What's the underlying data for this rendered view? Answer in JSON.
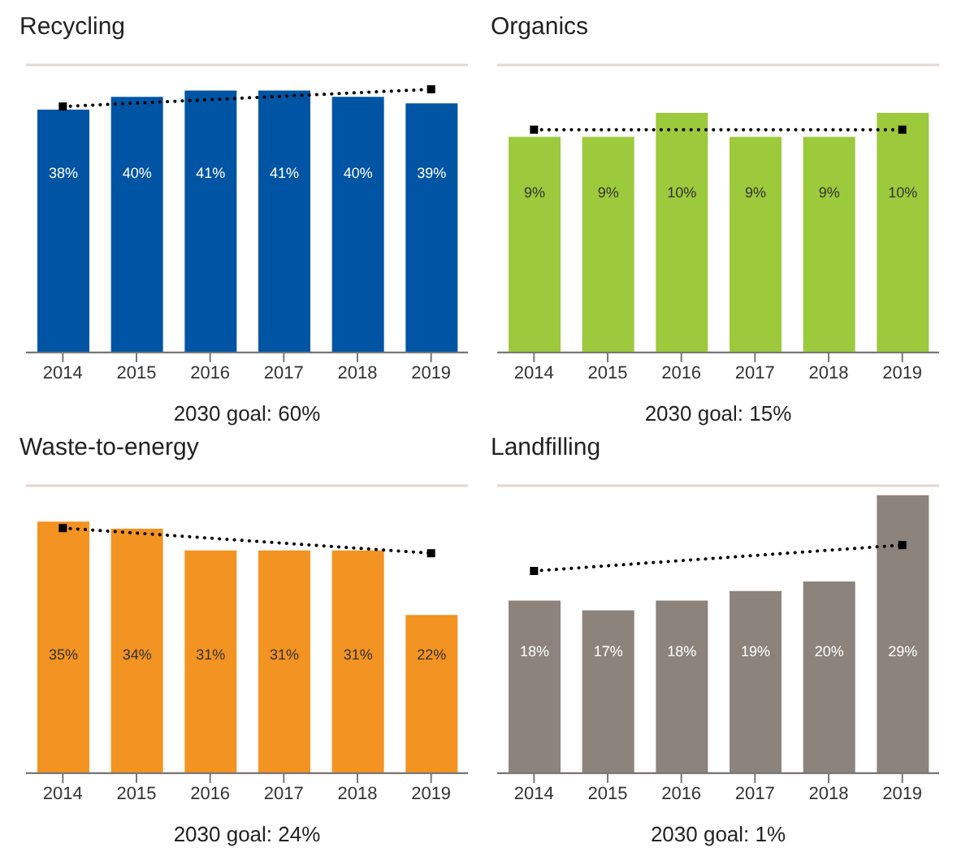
{
  "chart_data": [
    {
      "type": "bar",
      "title": "Recycling",
      "xlabel": "2030 goal: 60%",
      "categories": [
        "2014",
        "2015",
        "2016",
        "2017",
        "2018",
        "2019"
      ],
      "tick_labels": "x",
      "grid": "y",
      "ylim": [
        0,
        45
      ],
      "series": [
        {
          "color": "#0054a4",
          "values": [
            38,
            40,
            41,
            41,
            40,
            39
          ],
          "value_labels": [
            "38%",
            "40%",
            "41%",
            "41%",
            "40%",
            "39%"
          ]
        },
        {
          "type": "line",
          "color": "#000000",
          "values": [
            38.5,
            null,
            null,
            null,
            null,
            41.2
          ],
          "line_style": "dotted",
          "marker": "square"
        }
      ]
    },
    {
      "type": "bar",
      "title": "Organics",
      "xlabel": "2030 goal: 15%",
      "categories": [
        "2014",
        "2015",
        "2016",
        "2017",
        "2018",
        "2019"
      ],
      "tick_labels": "x",
      "grid": "y",
      "ylim": [
        0,
        12
      ],
      "series": [
        {
          "color": "#9dc93c",
          "values": [
            9,
            9,
            10,
            9,
            9,
            10
          ],
          "value_labels": [
            "9%",
            "9%",
            "10%",
            "9%",
            "9%",
            "10%"
          ]
        },
        {
          "type": "line",
          "color": "#000000",
          "values": [
            9.3,
            null,
            null,
            null,
            null,
            9.3
          ],
          "line_style": "dotted",
          "marker": "square"
        }
      ]
    },
    {
      "type": "bar",
      "title": "Waste-to-energy",
      "xlabel": "2030 goal: 24%",
      "categories": [
        "2014",
        "2015",
        "2016",
        "2017",
        "2018",
        "2019"
      ],
      "tick_labels": "x",
      "grid": "y",
      "ylim": [
        0,
        40
      ],
      "series": [
        {
          "color": "#f39322",
          "values": [
            35,
            34,
            31,
            31,
            31,
            22
          ],
          "value_labels": [
            "35%",
            "34%",
            "31%",
            "31%",
            "31%",
            "22%"
          ]
        },
        {
          "type": "line",
          "color": "#000000",
          "values": [
            34.1,
            null,
            null,
            null,
            null,
            30.6
          ],
          "line_style": "dotted",
          "marker": "square"
        }
      ]
    },
    {
      "type": "bar",
      "title": "Landfilling",
      "xlabel": "2030 goal: 1%",
      "categories": [
        "2014",
        "2015",
        "2016",
        "2017",
        "2018",
        "2019"
      ],
      "tick_labels": "x",
      "grid": "y",
      "ylim": [
        0,
        30
      ],
      "series": [
        {
          "color": "#8c837c",
          "values": [
            18,
            17,
            18,
            19,
            20,
            29
          ],
          "value_labels": [
            "18%",
            "17%",
            "18%",
            "19%",
            "20%",
            "29%"
          ]
        },
        {
          "type": "line",
          "color": "#000000",
          "values": [
            21.1,
            null,
            null,
            null,
            null,
            23.8
          ],
          "line_style": "dotted",
          "marker": "square"
        }
      ]
    }
  ]
}
